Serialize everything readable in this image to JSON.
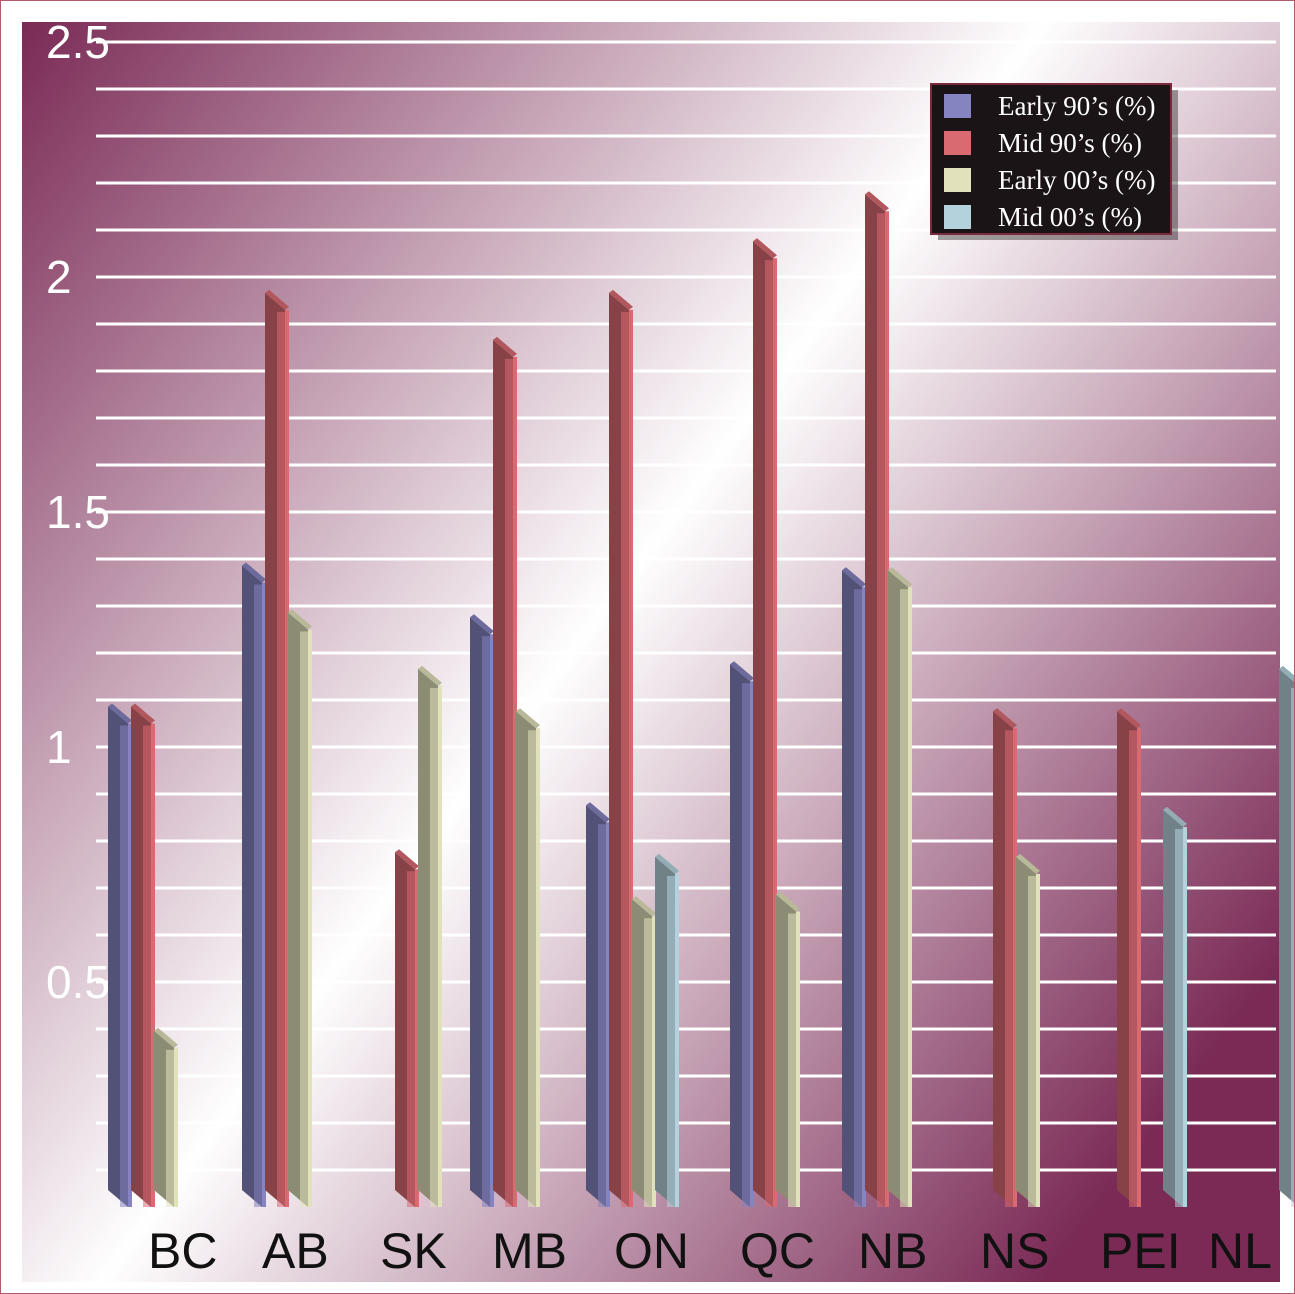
{
  "chart_data": {
    "type": "bar",
    "categories": [
      "BC",
      "AB",
      "SK",
      "MB",
      "ON",
      "QC",
      "NB",
      "NS",
      "PEI",
      "NL"
    ],
    "series": [
      {
        "name": "Early 90’s (%)",
        "color": "#8583c0",
        "values": [
          1.05,
          1.35,
          null,
          1.24,
          0.84,
          1.14,
          1.34,
          null,
          null,
          null
        ]
      },
      {
        "name": "Mid 90’s (%)",
        "color": "#d96a72",
        "values": [
          1.05,
          1.93,
          0.74,
          1.83,
          1.93,
          2.04,
          2.14,
          1.04,
          1.04,
          null
        ]
      },
      {
        "name": "Early 00’s (%)",
        "color": "#e1e1bb",
        "values": [
          0.36,
          1.25,
          1.13,
          1.04,
          0.64,
          0.65,
          1.34,
          0.73,
          null,
          null
        ]
      },
      {
        "name": "Mid 00’s (%)",
        "color": "#b4d2dc",
        "values": [
          null,
          null,
          null,
          null,
          0.73,
          null,
          null,
          null,
          0.83,
          1.13
        ]
      }
    ],
    "yticks": [
      "0.5",
      "1",
      "1.5",
      "2",
      "2.5"
    ],
    "ylim": [
      0,
      2.5
    ],
    "grid": true,
    "legend_position": "top-right",
    "background": "#7a2a55"
  }
}
